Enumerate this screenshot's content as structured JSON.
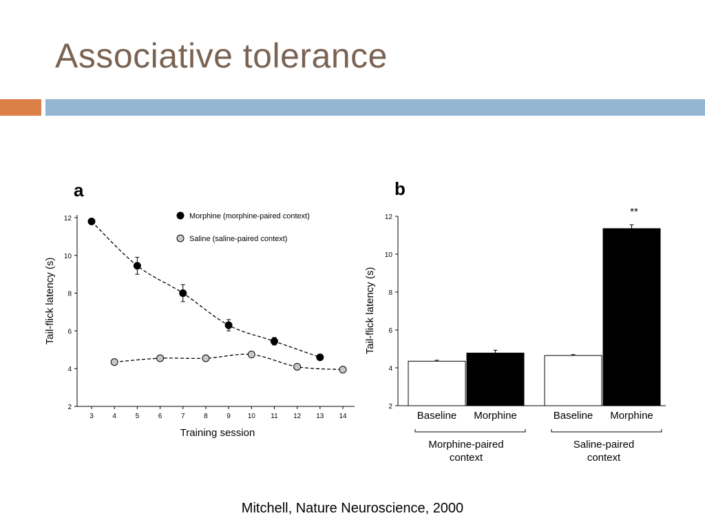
{
  "slide": {
    "title": "Associative tolerance",
    "citation": "Mitchell, Nature Neuroscience, 2000",
    "colors": {
      "title": "#7a6353",
      "accent_orange": "#dd8047",
      "accent_blue": "#94b6d2"
    }
  },
  "chart_data": [
    {
      "panel_label": "a",
      "type": "line",
      "xlabel": "Training session",
      "ylabel": "Tail-flick latency (s)",
      "ylim": [
        2,
        12
      ],
      "yticks": [
        2,
        4,
        6,
        8,
        10,
        12
      ],
      "xticks": [
        3,
        4,
        5,
        6,
        7,
        8,
        9,
        10,
        11,
        12,
        13,
        14
      ],
      "grid": false,
      "legend_position": "top-right",
      "series": [
        {
          "name": "Morphine (morphine-paired context)",
          "marker_color": "#000000",
          "x": [
            3,
            5,
            7,
            9,
            11,
            13
          ],
          "y": [
            11.8,
            9.45,
            8.0,
            6.3,
            5.45,
            4.6
          ],
          "err": [
            0,
            0.45,
            0.45,
            0.3,
            0.2,
            0
          ]
        },
        {
          "name": "Saline (saline-paired context)",
          "marker_color": "#c8c8c8",
          "x": [
            4,
            6,
            8,
            10,
            12,
            14
          ],
          "y": [
            4.35,
            4.55,
            4.55,
            4.75,
            4.1,
            3.95
          ],
          "err": [
            0,
            0,
            0,
            0,
            0,
            0
          ]
        }
      ]
    },
    {
      "panel_label": "b",
      "type": "bar",
      "ylabel": "Tail-flick latency (s)",
      "ylim": [
        2,
        12
      ],
      "yticks": [
        2,
        4,
        6,
        8,
        10,
        12
      ],
      "grid": false,
      "bars": [
        {
          "label": "Baseline",
          "value": 4.35,
          "err": 0.05,
          "fill": "#ffffff"
        },
        {
          "label": "Morphine",
          "value": 4.78,
          "err": 0.15,
          "fill": "#000000"
        },
        {
          "label": "Baseline",
          "value": 4.65,
          "err": 0.05,
          "fill": "#ffffff"
        },
        {
          "label": "Morphine",
          "value": 11.35,
          "err": 0.2,
          "fill": "#000000"
        }
      ],
      "groups": [
        {
          "line1": "Morphine-paired",
          "line2": "context"
        },
        {
          "line1": "Saline-paired",
          "line2": "context"
        }
      ],
      "significance": "**"
    }
  ]
}
